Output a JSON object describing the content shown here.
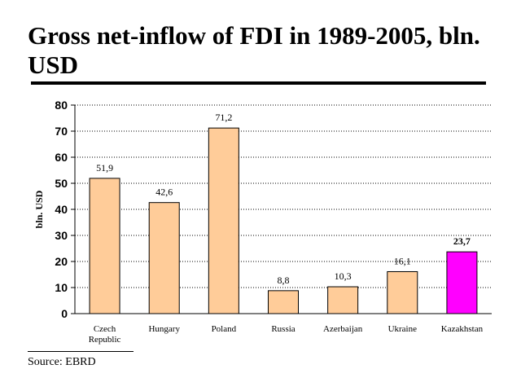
{
  "slide": {
    "title": "Gross net-inflow of FDI in 1989-2005, bln. USD",
    "source": "Source: EBRD"
  },
  "chart_data": {
    "type": "bar",
    "title": "",
    "xlabel": "",
    "ylabel": "bln. USD",
    "ylim": [
      0,
      80
    ],
    "yticks": [
      0,
      10,
      20,
      30,
      40,
      50,
      60,
      70,
      80
    ],
    "grid": true,
    "categories": [
      [
        "Czech",
        "Republic"
      ],
      [
        "Hungary"
      ],
      [
        "Poland"
      ],
      [
        "Russia"
      ],
      [
        "Azerbaijan"
      ],
      [
        "Ukraine"
      ],
      [
        "Kazakhstan"
      ]
    ],
    "values": [
      51.9,
      42.6,
      71.2,
      8.8,
      10.3,
      16.1,
      23.7
    ],
    "value_labels": [
      "51,9",
      "42,6",
      "71,2",
      "8,8",
      "10,3",
      "16,1",
      "23,7"
    ],
    "bar_colors": [
      "#FFCC99",
      "#FFCC99",
      "#FFCC99",
      "#FFCC99",
      "#FFCC99",
      "#FFCC99",
      "#FF00FF"
    ],
    "highlight_label_bold": [
      false,
      false,
      false,
      false,
      false,
      false,
      true
    ]
  }
}
